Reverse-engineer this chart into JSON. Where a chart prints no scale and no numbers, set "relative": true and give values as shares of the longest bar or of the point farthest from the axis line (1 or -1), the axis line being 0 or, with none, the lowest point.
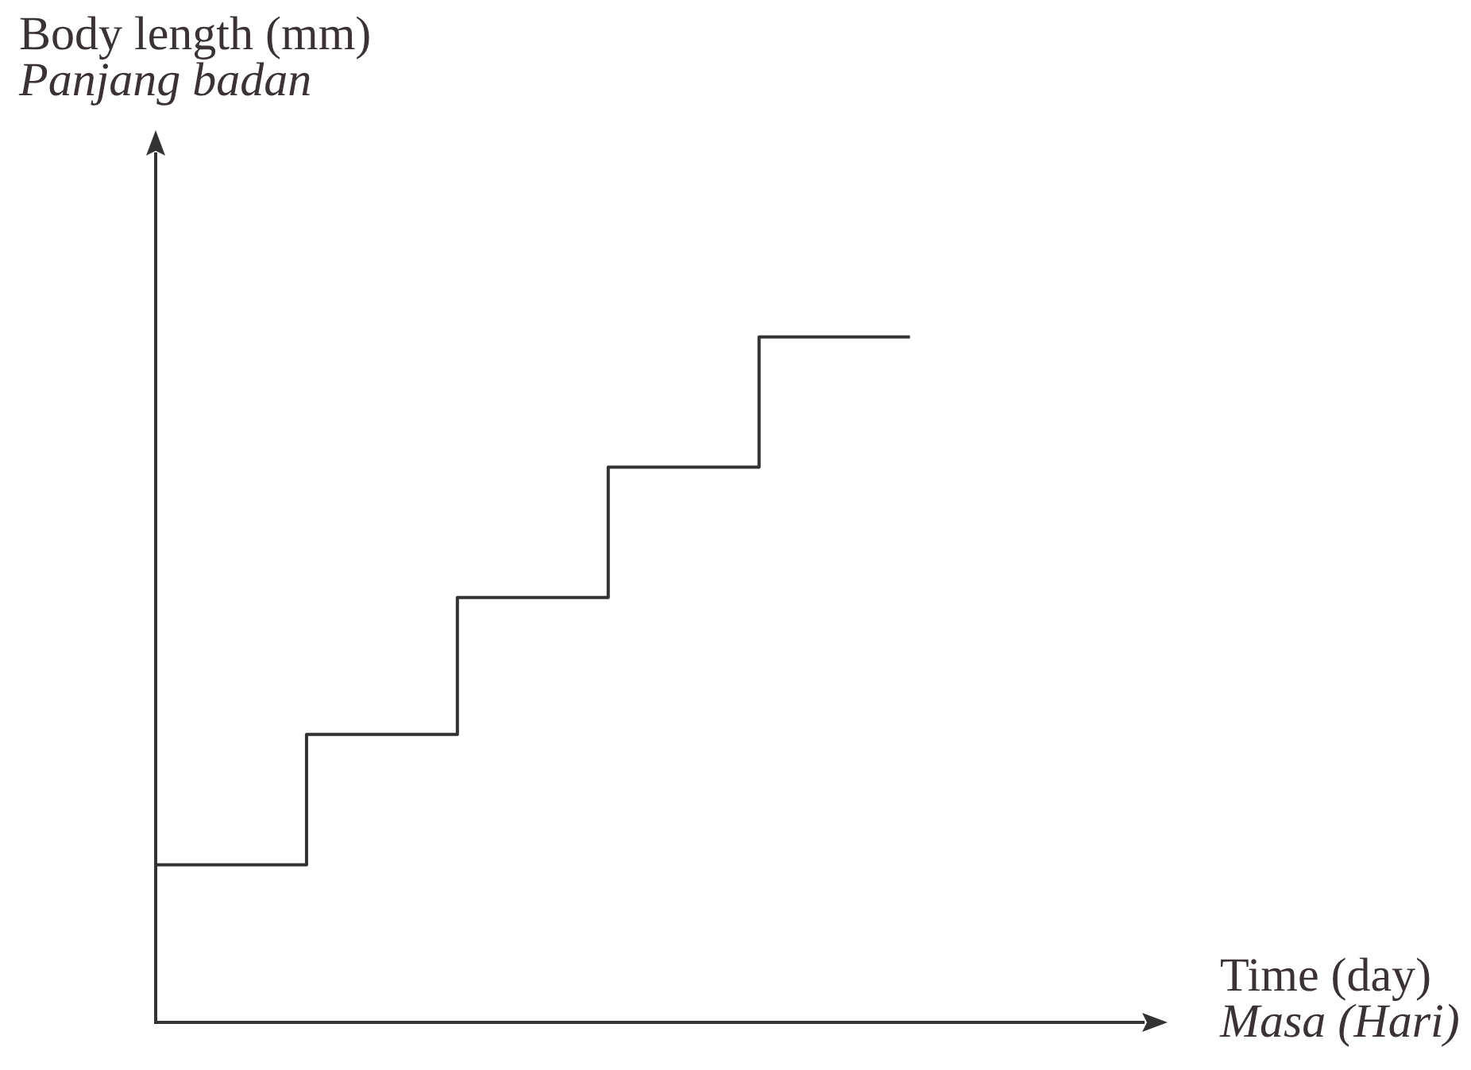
{
  "chart_data": {
    "type": "step",
    "relative": true,
    "categories": [
      null,
      null,
      null,
      null,
      null,
      null
    ],
    "values": [
      0.23,
      0.42,
      0.62,
      0.81,
      1,
      1
    ],
    "color": "#333333",
    "xlabel": "Time (day)\nMasa (Hari)",
    "ylabel": "Body length (mm)\nPanjang badan",
    "tick_labels": false,
    "marker": "none"
  }
}
